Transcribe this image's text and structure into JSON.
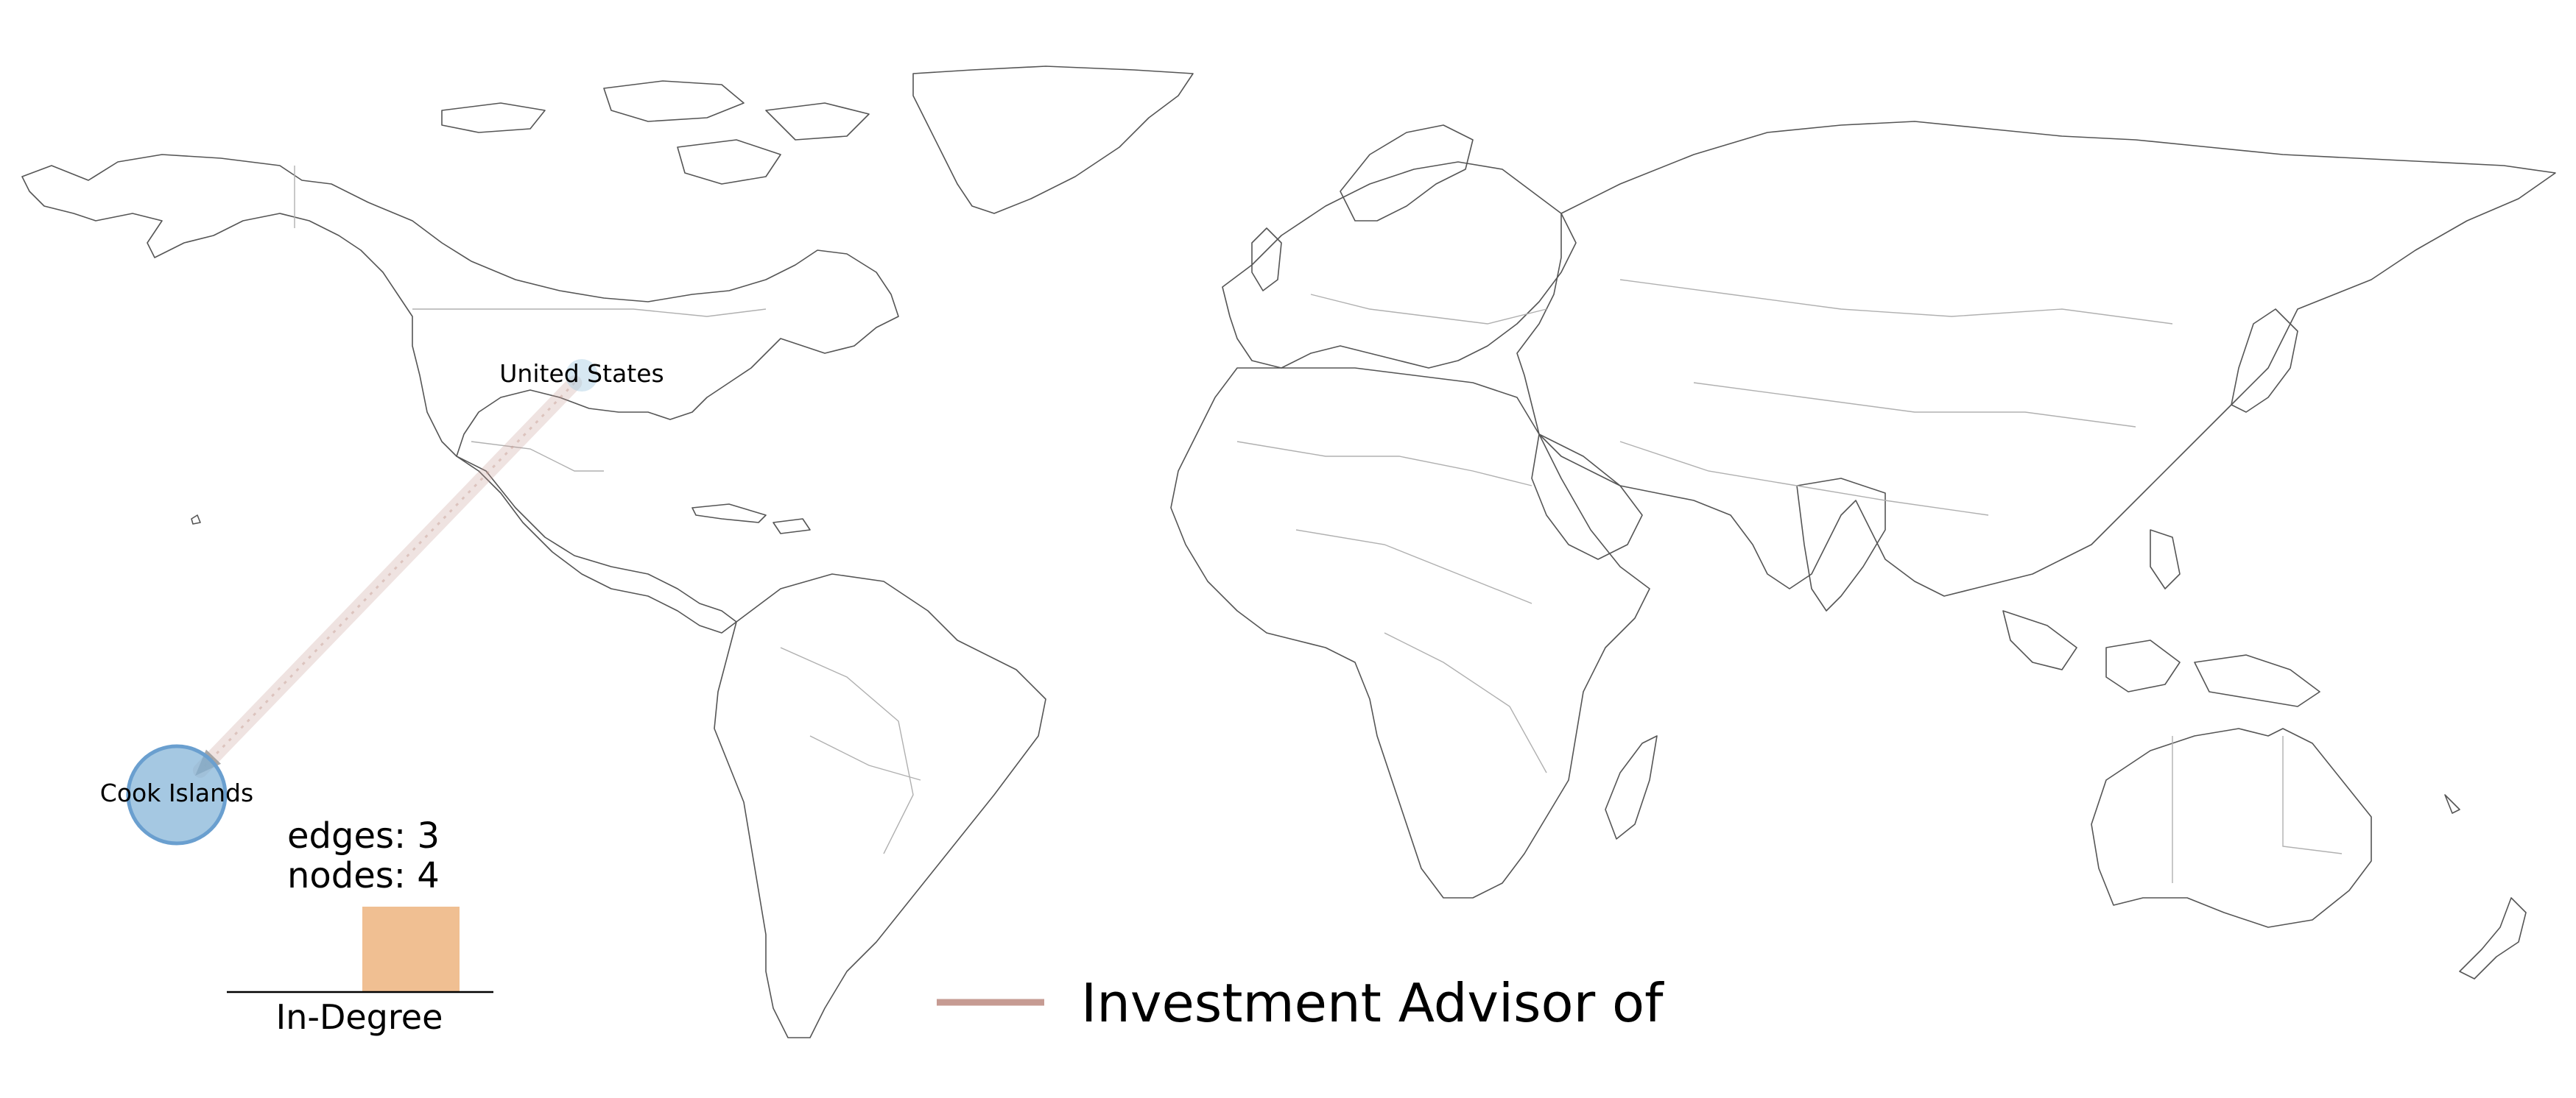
{
  "map": {
    "type": "world-network-map",
    "nodes": [
      {
        "name": "United States",
        "label": "United States",
        "in_degree": 0,
        "color": "#a6cbe3"
      },
      {
        "name": "Cook Islands",
        "label": "Cook Islands",
        "in_degree": 3,
        "color": "#7fb0d6"
      }
    ],
    "edges": [
      {
        "source": "United States",
        "target": "Cook Islands",
        "relation": "Investment Advisor of",
        "color": "#c69b93"
      }
    ]
  },
  "stats": {
    "edges_text": "edges: 3",
    "nodes_text": "nodes: 4"
  },
  "histogram": {
    "xlabel": "In-Degree",
    "bar_color": "#f0bf92"
  },
  "legend": {
    "label": "Investment Advisor of",
    "color": "#c69b93"
  }
}
